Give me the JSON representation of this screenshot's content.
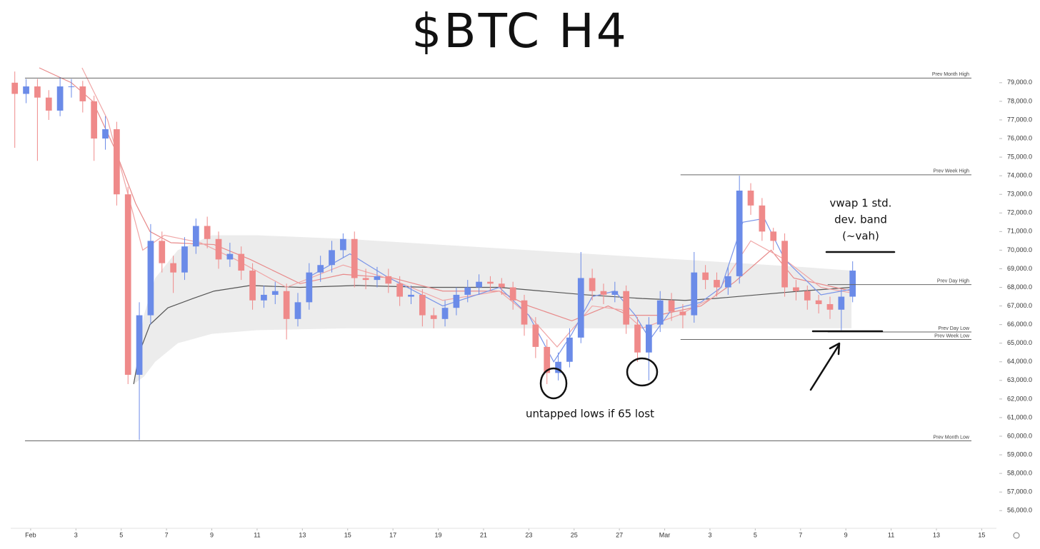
{
  "chart_data": {
    "type": "candlestick",
    "title": "$BTC H4",
    "up_color": "#6b8be8",
    "down_color": "#ef8a8a",
    "xlim": [
      -0.88,
      42.65
    ],
    "xticks": [
      {
        "value": 0,
        "label": "Feb"
      },
      {
        "value": 2,
        "label": "3"
      },
      {
        "value": 4,
        "label": "5"
      },
      {
        "value": 6,
        "label": "7"
      },
      {
        "value": 8,
        "label": "9"
      },
      {
        "value": 10,
        "label": "11"
      },
      {
        "value": 12,
        "label": "13"
      },
      {
        "value": 14,
        "label": "15"
      },
      {
        "value": 16,
        "label": "17"
      },
      {
        "value": 18,
        "label": "19"
      },
      {
        "value": 20,
        "label": "21"
      },
      {
        "value": 22,
        "label": "23"
      },
      {
        "value": 24,
        "label": "25"
      },
      {
        "value": 26,
        "label": "27"
      },
      {
        "value": 28,
        "label": "Mar"
      },
      {
        "value": 30,
        "label": "3"
      },
      {
        "value": 32,
        "label": "5"
      },
      {
        "value": 34,
        "label": "7"
      },
      {
        "value": 36,
        "label": "9"
      },
      {
        "value": 38,
        "label": "11"
      },
      {
        "value": 40,
        "label": "13"
      },
      {
        "value": 42,
        "label": "15"
      }
    ],
    "ylim": [
      55050,
      79800
    ],
    "yticks": [
      {
        "value": 56000,
        "label": "56,000.0"
      },
      {
        "value": 57000,
        "label": "57,000.0"
      },
      {
        "value": 58000,
        "label": "58,000.0"
      },
      {
        "value": 59000,
        "label": "59,000.0"
      },
      {
        "value": 60000,
        "label": "60,000.0"
      },
      {
        "value": 61000,
        "label": "61,000.0"
      },
      {
        "value": 62000,
        "label": "62,000.0"
      },
      {
        "value": 63000,
        "label": "63,000.0"
      },
      {
        "value": 64000,
        "label": "64,000.0"
      },
      {
        "value": 65000,
        "label": "65,000.0"
      },
      {
        "value": 66000,
        "label": "66,000.0"
      },
      {
        "value": 67000,
        "label": "67,000.0"
      },
      {
        "value": 68000,
        "label": "68,000.0"
      },
      {
        "value": 69000,
        "label": "69,000.0"
      },
      {
        "value": 70000,
        "label": "70,000.0"
      },
      {
        "value": 71000,
        "label": "71,000.0"
      },
      {
        "value": 72000,
        "label": "72,000.0"
      },
      {
        "value": 73000,
        "label": "73,000.0"
      },
      {
        "value": 74000,
        "label": "74,000.0"
      },
      {
        "value": 75000,
        "label": "75,000.0"
      },
      {
        "value": 76000,
        "label": "76,000.0"
      },
      {
        "value": 77000,
        "label": "77,000.0"
      },
      {
        "value": 78000,
        "label": "78,000.0"
      },
      {
        "value": 79000,
        "label": "79,000.0"
      }
    ],
    "x": [
      -0.7,
      -0.2,
      0.3,
      0.8,
      1.3,
      1.8,
      2.3,
      2.8,
      3.3,
      3.8,
      4.3,
      4.8,
      5.3,
      5.8,
      6.3,
      6.8,
      7.3,
      7.8,
      8.3,
      8.8,
      9.3,
      9.8,
      10.3,
      10.8,
      11.3,
      11.8,
      12.3,
      12.8,
      13.3,
      13.8,
      14.3,
      14.8,
      15.3,
      15.8,
      16.3,
      16.8,
      17.3,
      17.8,
      18.3,
      18.8,
      19.3,
      19.8,
      20.3,
      20.8,
      21.3,
      21.8,
      22.3,
      22.8,
      23.3,
      23.8,
      24.3,
      24.8,
      25.3,
      25.8,
      26.3,
      26.8,
      27.3,
      27.8,
      28.3,
      28.8,
      29.3,
      29.8,
      30.3,
      30.8,
      31.3,
      31.8,
      32.3,
      32.8,
      33.3,
      33.8,
      34.3,
      34.8,
      35.3,
      35.8,
      36.3
    ],
    "open": [
      79000,
      78400,
      78800,
      78200,
      77500,
      78800,
      78800,
      78000,
      76000,
      76500,
      73000,
      63300,
      66500,
      70500,
      69300,
      68800,
      70200,
      71300,
      70600,
      69500,
      69800,
      68900,
      67300,
      67600,
      67800,
      66300,
      67200,
      68800,
      69200,
      70000,
      70600,
      68500,
      68400,
      68600,
      68200,
      67500,
      67600,
      66500,
      66300,
      66900,
      67600,
      68000,
      68300,
      68200,
      68000,
      67300,
      66000,
      64800,
      63400,
      64000,
      65300,
      68500,
      67800,
      67600,
      67800,
      66000,
      64500,
      66000,
      67300,
      66700,
      66500,
      68800,
      68400,
      68000,
      68600,
      73200,
      72400,
      71000,
      70500,
      68000,
      67800,
      67300,
      67100,
      66800,
      67500
    ],
    "high": [
      79600,
      79200,
      79200,
      78600,
      79300,
      79200,
      79100,
      78300,
      77200,
      76900,
      73400,
      67200,
      71400,
      71000,
      69700,
      70700,
      71700,
      71800,
      71000,
      70400,
      70200,
      69300,
      68100,
      68300,
      68200,
      67700,
      69300,
      69700,
      70500,
      70900,
      71000,
      69000,
      69100,
      69000,
      68600,
      68100,
      67900,
      66900,
      67300,
      68000,
      68400,
      68700,
      68600,
      68500,
      68300,
      67600,
      66400,
      65200,
      64500,
      65800,
      69900,
      69000,
      68200,
      68300,
      68100,
      66400,
      66400,
      67800,
      67700,
      67100,
      69900,
      69200,
      68800,
      69100,
      74000,
      73600,
      72800,
      71200,
      70900,
      68400,
      68100,
      67600,
      67500,
      67900,
      69400
    ],
    "low": [
      75500,
      77900,
      74800,
      77000,
      77200,
      78200,
      77400,
      74800,
      75400,
      72400,
      62800,
      59800,
      66000,
      68800,
      67700,
      68400,
      69800,
      70100,
      69000,
      69100,
      68400,
      66800,
      66900,
      67100,
      65200,
      65900,
      66800,
      68300,
      68800,
      69600,
      68000,
      67900,
      68000,
      67700,
      67000,
      67100,
      65900,
      65800,
      65900,
      66500,
      67200,
      67600,
      67800,
      67600,
      66800,
      65400,
      64200,
      62800,
      63000,
      63700,
      65000,
      67300,
      67100,
      67200,
      65500,
      64000,
      63000,
      65600,
      66200,
      65800,
      66100,
      67900,
      67500,
      67600,
      68200,
      71900,
      70500,
      70000,
      67500,
      67300,
      66800,
      66600,
      66300,
      65700,
      67200
    ],
    "close": [
      78400,
      78800,
      78200,
      77500,
      78800,
      78800,
      78000,
      76000,
      76500,
      73000,
      63300,
      66500,
      70500,
      69300,
      68800,
      70200,
      71300,
      70600,
      69500,
      69800,
      68900,
      67300,
      67600,
      67800,
      66300,
      67200,
      68800,
      69200,
      70000,
      70600,
      68500,
      68400,
      68600,
      68200,
      67500,
      67600,
      66500,
      66300,
      66900,
      67600,
      68000,
      68300,
      68200,
      68000,
      67300,
      66000,
      64800,
      63400,
      64000,
      65300,
      68500,
      67800,
      67600,
      67800,
      66000,
      64500,
      66000,
      67300,
      66700,
      66500,
      68800,
      68400,
      68000,
      68600,
      73200,
      72400,
      71000,
      70500,
      68000,
      67800,
      67300,
      67100,
      66800,
      67500,
      68900
    ],
    "band": {
      "color": "#e9e9e9",
      "x": [
        4.55,
        5.0,
        5.5,
        6.5,
        8,
        10,
        14,
        18,
        22,
        26,
        30,
        34,
        36.25
      ],
      "upper": [
        62800,
        66500,
        68500,
        70000,
        70800,
        70800,
        70600,
        70300,
        70000,
        69700,
        69400,
        69100,
        68900
      ],
      "lower": [
        62800,
        63200,
        64000,
        65000,
        65500,
        65700,
        65800,
        65800,
        65800,
        65800,
        65800,
        65800,
        65800
      ]
    },
    "lines": [
      {
        "color": "#555555",
        "x": [
          4.55,
          4.8,
          5.27,
          6.06,
          7.16,
          8.1,
          9.7,
          11.9,
          14.4,
          17.6,
          20.7,
          22.6,
          24.5,
          27.0,
          28.9,
          30.2,
          32.1,
          34.0,
          36.25
        ],
        "values": [
          62800,
          64500,
          66000,
          66900,
          67400,
          67800,
          68100,
          68000,
          68100,
          68000,
          68000,
          67800,
          67600,
          67400,
          67300,
          67400,
          67600,
          67800,
          68000
        ]
      },
      {
        "color": "#e88a8a",
        "x": [
          0.38,
          1.8,
          2.74,
          3.7,
          4.64,
          5.27,
          6.2,
          8.1,
          9.7,
          11.9,
          13.8,
          16,
          18.2,
          20.7,
          22,
          23.9,
          25.5,
          26.4,
          27.7,
          29.6,
          31.1,
          32.7,
          33.7,
          36.25
        ],
        "values": [
          79800,
          79000,
          78000,
          75500,
          72500,
          71000,
          70400,
          70300,
          69500,
          68200,
          68700,
          68500,
          67800,
          67800,
          67000,
          66200,
          67000,
          66500,
          66500,
          67000,
          68300,
          70000,
          68500,
          67800
        ]
      },
      {
        "color": "#f0a6a6",
        "x": [
          2.27,
          3.4,
          4.3,
          4.95,
          5.9,
          7.5,
          9.05,
          11.3,
          13.8,
          16,
          18.2,
          20.7,
          22,
          23.25,
          24.8,
          26.1,
          27,
          28.6,
          30.2,
          31.8,
          33.3,
          34.9,
          36.25
        ],
        "values": [
          79800,
          77000,
          73000,
          70000,
          70800,
          70400,
          69500,
          68000,
          69200,
          68400,
          67300,
          67800,
          66500,
          64800,
          67000,
          66800,
          65800,
          66500,
          67500,
          70500,
          69500,
          68000,
          67700
        ]
      },
      {
        "color": "#7a95e8",
        "x": [
          12.2,
          14.1,
          15.7,
          18.2,
          20.7,
          22,
          23.1,
          23.9,
          24.8,
          25.8,
          26.7,
          27.35,
          28.3,
          29.6,
          30.5,
          31.45,
          32.4,
          33.3,
          34.9,
          36.25
        ],
        "values": [
          68500,
          69800,
          68600,
          67000,
          68000,
          66500,
          64000,
          65500,
          67500,
          67800,
          66500,
          65200,
          66800,
          67200,
          68000,
          71500,
          71700,
          69500,
          67600,
          67900
        ]
      }
    ],
    "levels": [
      {
        "label": "Prev Month High",
        "value": 79250,
        "from": -0.25
      },
      {
        "label": "Prev Week High",
        "value": 74050,
        "from": 28.7
      },
      {
        "label": "Prev Day High",
        "value": 68150,
        "from": 35.2
      },
      {
        "label": "Prev Day Low",
        "value": 65600,
        "from": 35.2
      },
      {
        "label": "Prev Week Low",
        "value": 65200,
        "from": 28.7
      },
      {
        "label": "Prev Month Low",
        "value": 59750,
        "from": -0.25
      }
    ],
    "annotations": [
      [
        "vwap 1 std.",
        "dev. band",
        "(~vah)"
      ],
      [
        "untapped lows if 65 lost"
      ]
    ]
  }
}
